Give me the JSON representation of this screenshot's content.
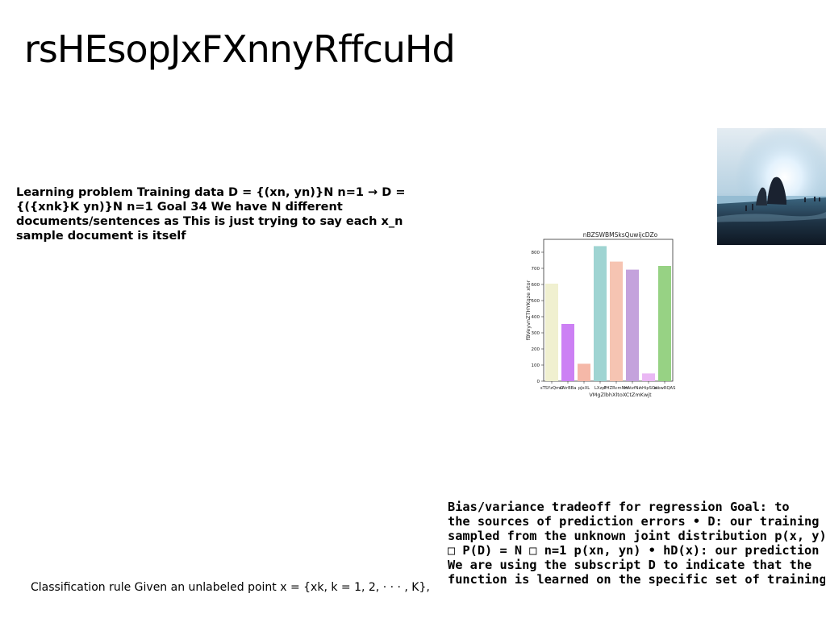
{
  "slide": {
    "title": "rsHEsopJxFXnnyRffcuHd"
  },
  "blocks": {
    "learning_problem": "Learning problem Training data D = {(xn, yn)}N n=1 → D = {({xnk}K yn)}N n=1 Goal 34 We have N different documents/sentences as This is just trying to say each x_n sample document is itself",
    "bias_variance_lines": [
      "Bias/variance tradeoff for regression Goal: to",
      "the sources of prediction errors • D: our training",
      "sampled from the unknown joint distribution p(x, y)",
      "□ P(D) = N □ n=1 p(xn, yn) • hD(x): our prediction",
      "We are using the subscript D to indicate that the",
      "function is learned on the specific set of training"
    ],
    "classification_rule": "Classification rule Given an unlabeled point x = {xk, k = 1, 2, · · · , K},"
  },
  "photo": {
    "icon": "beach-sunset-photo",
    "colors": {
      "sky_top": "#cfe3ee",
      "sun": "#ffffff",
      "water": "#5a7f95",
      "rocks": "#1a2230"
    }
  },
  "chart_data": {
    "type": "bar",
    "title": "nBZSWBMSksQuwijcDZo",
    "xlabel": "VMgZlbhXltoXCtZmKwjt",
    "ylabel": "fBVeyvnZTHYKgze xtor",
    "categories": [
      "sTSYzQmG",
      "cAtrBBa",
      "pJxXL",
      "LXzpl",
      "PHZRcmNm",
      "HAtzfNz",
      "hHipSOa",
      "ztbwRQAS"
    ],
    "values": [
      605,
      355,
      108,
      838,
      742,
      692,
      48,
      715
    ],
    "colors": [
      "#f0f0d0",
      "#cc80f4",
      "#f5b8a8",
      "#9fd4d2",
      "#f6c4b2",
      "#c4a2dc",
      "#eab8f4",
      "#97d284"
    ],
    "ylim": [
      0,
      880
    ],
    "yticks": [
      0,
      100,
      200,
      300,
      400,
      500,
      600,
      700,
      800
    ],
    "grid": false
  }
}
